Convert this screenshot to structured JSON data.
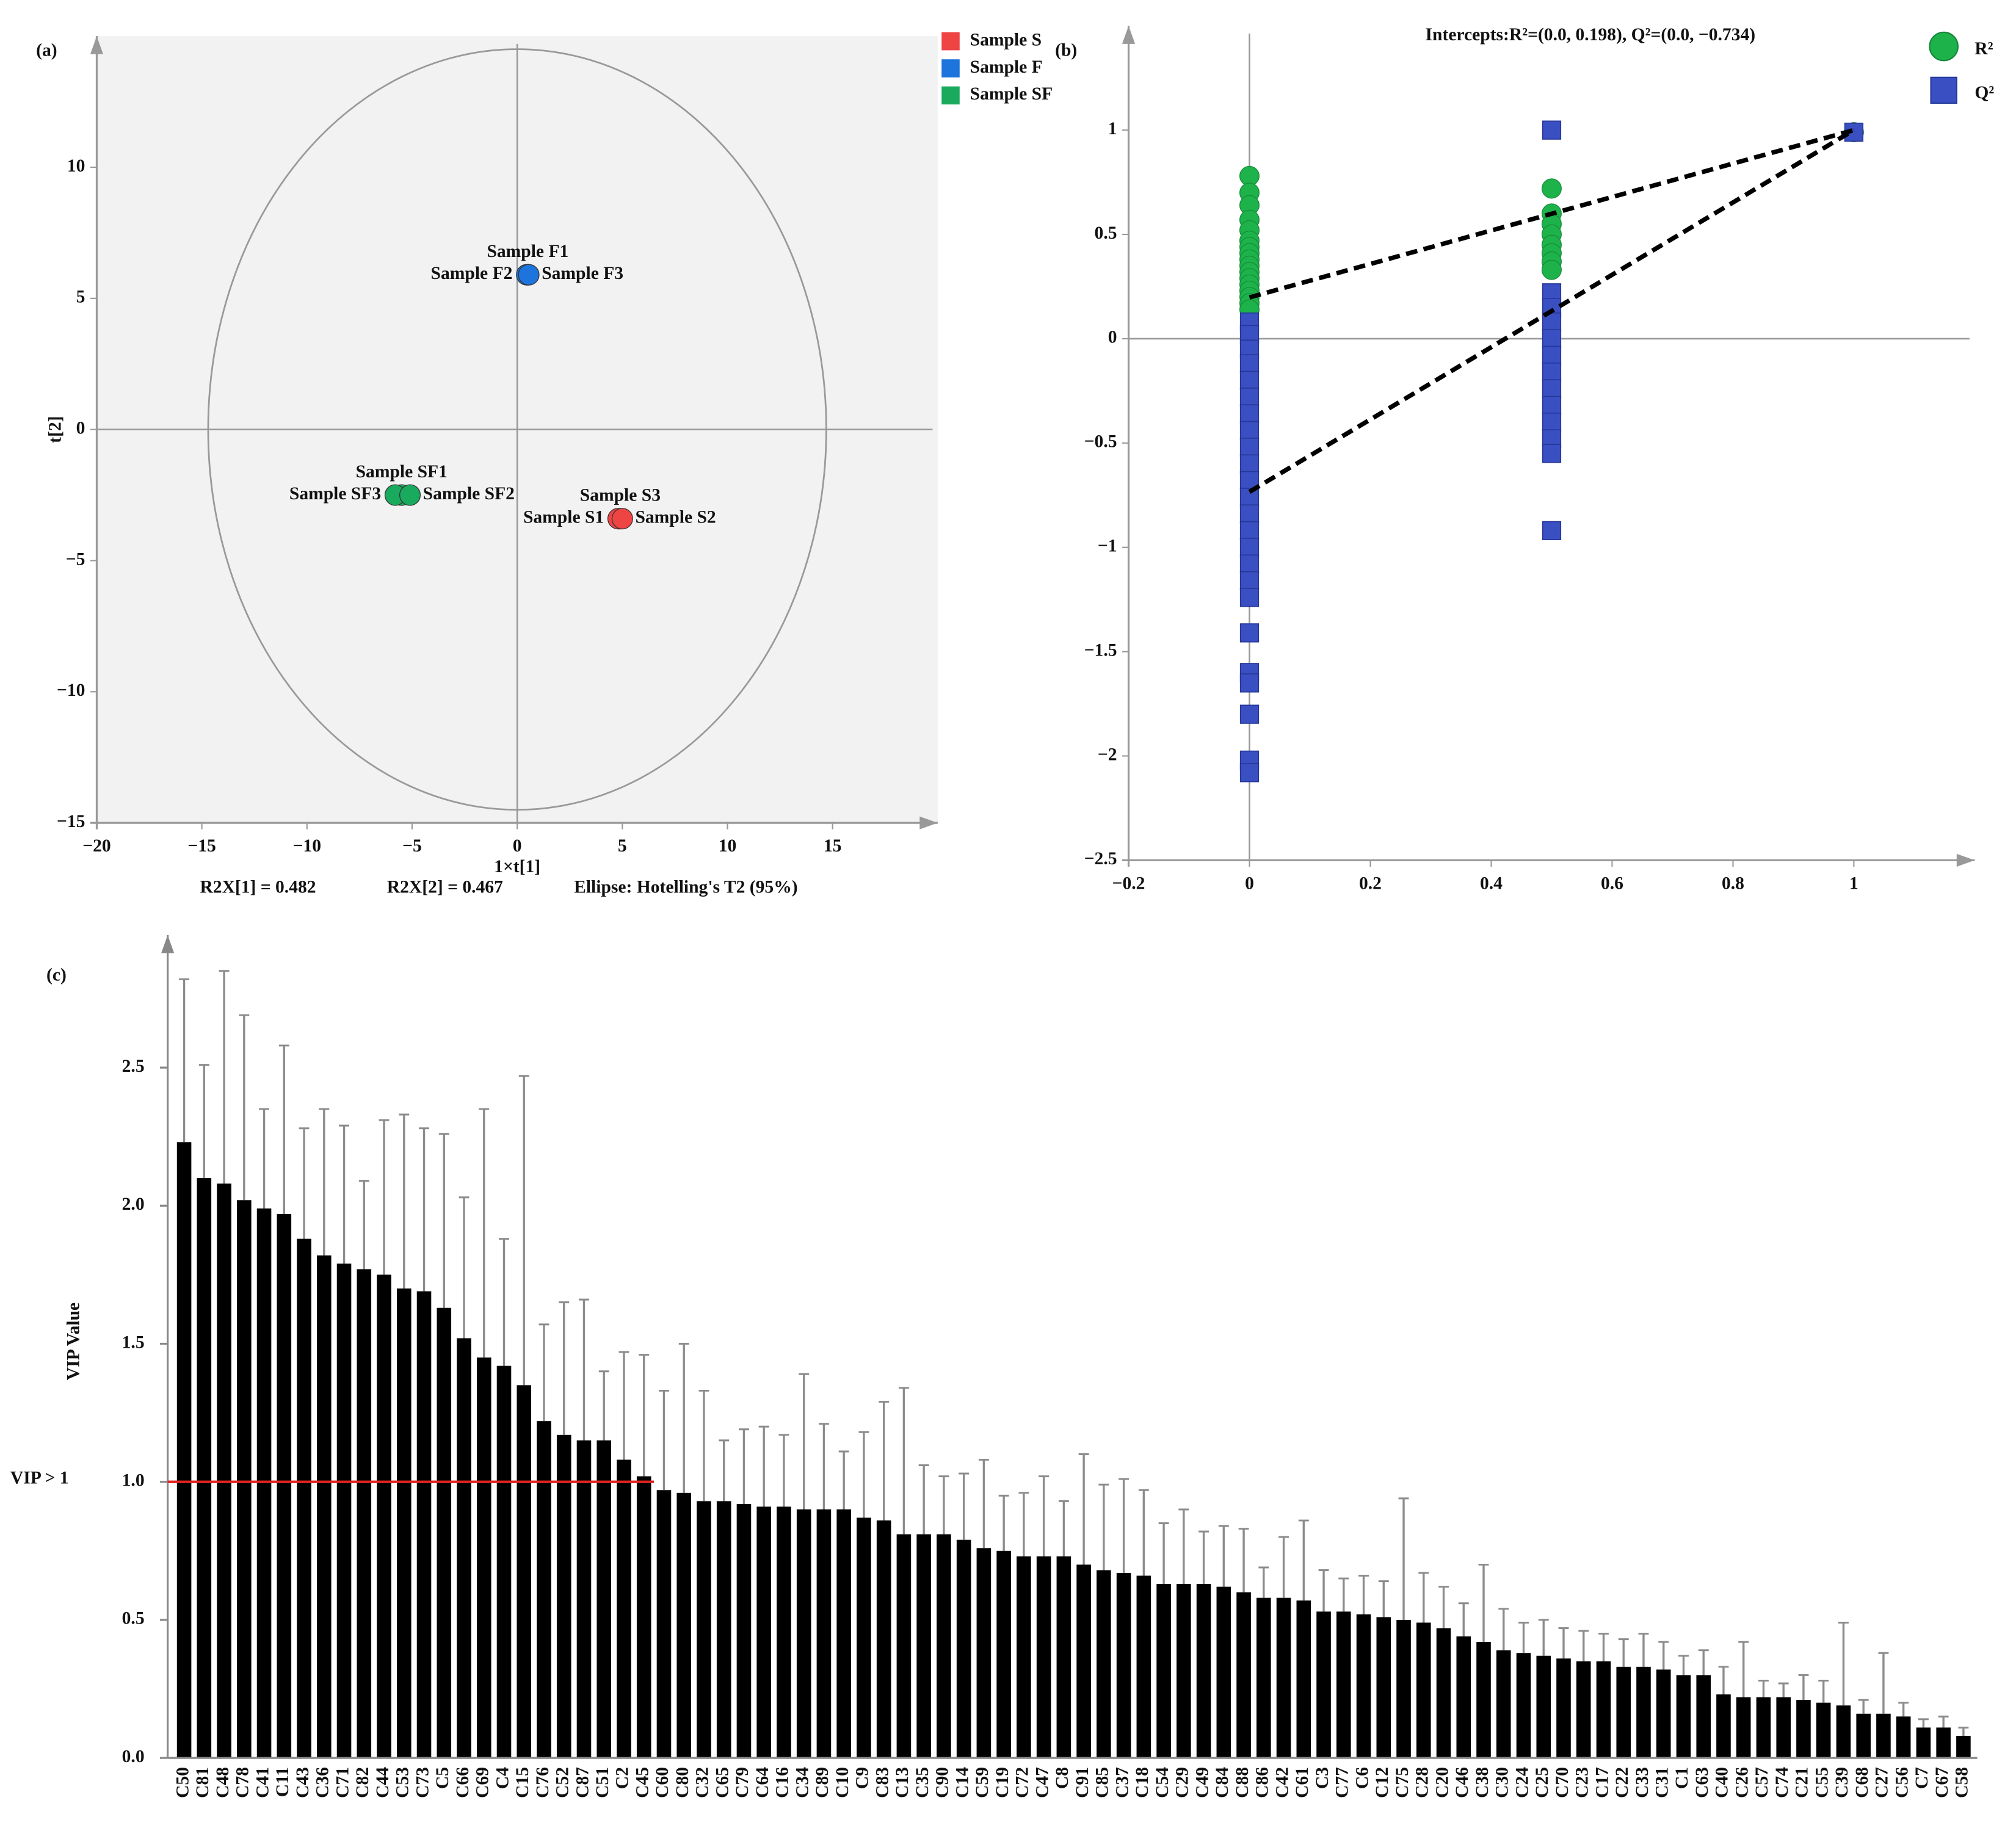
{
  "chart_data": [
    {
      "type": "scatter",
      "panel": "(a)",
      "x_label": "1×t[1]",
      "y_label": "t[2]",
      "footnotes": [
        "R2X[1] = 0.482",
        "R2X[2] = 0.467",
        "Ellipse: Hotelling's T2 (95%)"
      ],
      "xlim": [
        -20,
        20
      ],
      "ylim": [
        -15,
        15
      ],
      "xticks": [
        {
          "value": -20,
          "label": "−20"
        },
        {
          "value": -15,
          "label": "−15"
        },
        {
          "value": -10,
          "label": "−10"
        },
        {
          "value": -5,
          "label": "−5"
        },
        0,
        5,
        10,
        15
      ],
      "yticks": [
        {
          "value": -15,
          "label": "−15"
        },
        {
          "value": -10,
          "label": "−10"
        },
        {
          "value": -5,
          "label": "−5"
        },
        0,
        5,
        10
      ],
      "ellipse": {
        "rx": 14.7,
        "ry": 14.5
      },
      "series": [
        {
          "name": "Sample S",
          "color": "#ef4444",
          "label_color": "#c62828",
          "x": [
            4.9,
            4.8,
            5.0
          ],
          "values": [
            -3.4,
            -3.4,
            -3.4
          ],
          "labels": [
            "Sample S3",
            "Sample S1",
            "Sample S2"
          ]
        },
        {
          "name": "Sample F",
          "color": "#1c74dc",
          "label_color": "#1f5ea8",
          "x": [
            0.5,
            0.45,
            0.55
          ],
          "values": [
            5.9,
            5.9,
            5.9
          ],
          "labels": [
            "Sample F1",
            "Sample F2",
            "Sample F3"
          ]
        },
        {
          "name": "Sample SF",
          "color": "#19aa5e",
          "label_color": "#1b8a48",
          "x": [
            -5.5,
            -5.8,
            -5.1
          ],
          "values": [
            -2.5,
            -2.5,
            -2.5
          ],
          "labels": [
            "Sample SF1",
            "Sample SF3",
            "Sample SF2"
          ]
        }
      ]
    },
    {
      "type": "scatter",
      "panel": "(b)",
      "title": "Intercepts:R²=(0.0, 0.198), Q²=(0.0, −0.734)",
      "xlim": [
        -0.2,
        1.2
      ],
      "ylim": [
        -2.5,
        1.5
      ],
      "xticks": [
        {
          "value": -0.2,
          "label": "−0.2"
        },
        0,
        0.2,
        0.4,
        0.6,
        0.8,
        1
      ],
      "yticks": [
        {
          "value": -2.5,
          "label": "−2.5"
        },
        {
          "value": -2,
          "label": "−2"
        },
        {
          "value": -1.5,
          "label": "−1.5"
        },
        {
          "value": -1,
          "label": "−1"
        },
        {
          "value": -0.5,
          "label": "−0.5"
        },
        0,
        0.5,
        1
      ],
      "series": [
        {
          "name": "R²",
          "color": "#1db34a",
          "marker": "circle",
          "x": [
            0,
            0,
            0,
            0,
            0,
            0,
            0,
            0,
            0,
            0,
            0,
            0,
            0,
            0,
            0,
            0,
            0,
            0.5,
            0.5,
            0.5,
            0.5,
            0.5,
            0.5,
            0.5,
            0.5,
            1
          ],
          "values": [
            0.78,
            0.7,
            0.64,
            0.57,
            0.52,
            0.47,
            0.44,
            0.41,
            0.38,
            0.35,
            0.32,
            0.29,
            0.26,
            0.23,
            0.2,
            0.17,
            0.14,
            0.72,
            0.6,
            0.55,
            0.5,
            0.45,
            0.41,
            0.37,
            0.33,
            0.99
          ]
        },
        {
          "name": "Q²",
          "color": "#3a50c2",
          "marker": "square",
          "x": [
            0,
            0,
            0,
            0,
            0,
            0,
            0,
            0,
            0,
            0,
            0,
            0,
            0,
            0,
            0,
            0,
            0,
            0,
            0,
            0,
            0,
            0,
            0,
            0,
            0.5,
            0.5,
            0.5,
            0.5,
            0.5,
            0.5,
            0.5,
            0.5,
            0.5,
            0.5,
            0.5,
            0.5,
            0.5,
            1
          ],
          "values": [
            0.08,
            0.02,
            -0.05,
            -0.12,
            -0.2,
            -0.28,
            -0.36,
            -0.44,
            -0.52,
            -0.6,
            -0.68,
            -0.76,
            -0.84,
            -0.92,
            -1.0,
            -1.08,
            -1.16,
            -1.24,
            -1.41,
            -1.6,
            -1.65,
            -1.8,
            -2.02,
            -2.08,
            1.0,
            0.22,
            0.15,
            0.08,
            0.0,
            -0.08,
            -0.16,
            -0.24,
            -0.32,
            -0.4,
            -0.48,
            -0.55,
            -0.92,
            0.99
          ]
        }
      ],
      "lines": [
        {
          "x": [
            0,
            1
          ],
          "values": [
            0.198,
            1
          ]
        },
        {
          "x": [
            0,
            1
          ],
          "values": [
            -0.734,
            1
          ]
        }
      ]
    },
    {
      "type": "bar",
      "panel": "(c)",
      "y_label": "VIP Value",
      "categories": [
        "C50",
        "C81",
        "C48",
        "C78",
        "C41",
        "C11",
        "C43",
        "C36",
        "C71",
        "C82",
        "C44",
        "C53",
        "C73",
        "C5",
        "C66",
        "C69",
        "C4",
        "C15",
        "C76",
        "C52",
        "C87",
        "C51",
        "C2",
        "C45",
        "C60",
        "C80",
        "C32",
        "C65",
        "C79",
        "C64",
        "C16",
        "C34",
        "C89",
        "C10",
        "C9",
        "C83",
        "C13",
        "C35",
        "C90",
        "C14",
        "C59",
        "C19",
        "C72",
        "C47",
        "C8",
        "C91",
        "C85",
        "C37",
        "C18",
        "C54",
        "C29",
        "C49",
        "C84",
        "C88",
        "C86",
        "C42",
        "C61",
        "C3",
        "C77",
        "C6",
        "C12",
        "C75",
        "C28",
        "C20",
        "C46",
        "C38",
        "C30",
        "C24",
        "C25",
        "C70",
        "C23",
        "C17",
        "C22",
        "C33",
        "C31",
        "C1",
        "C63",
        "C40",
        "C26",
        "C57",
        "C74",
        "C21",
        "C55",
        "C39",
        "C68",
        "C27",
        "C56",
        "C7",
        "C67",
        "C58"
      ],
      "values": [
        2.23,
        2.1,
        2.08,
        2.02,
        1.99,
        1.97,
        1.88,
        1.82,
        1.79,
        1.77,
        1.75,
        1.7,
        1.69,
        1.63,
        1.52,
        1.45,
        1.42,
        1.35,
        1.22,
        1.17,
        1.15,
        1.15,
        1.08,
        1.02,
        0.97,
        0.96,
        0.93,
        0.93,
        0.92,
        0.91,
        0.91,
        0.9,
        0.9,
        0.9,
        0.87,
        0.86,
        0.81,
        0.81,
        0.81,
        0.79,
        0.76,
        0.75,
        0.73,
        0.73,
        0.73,
        0.7,
        0.68,
        0.67,
        0.66,
        0.63,
        0.63,
        0.63,
        0.62,
        0.6,
        0.58,
        0.58,
        0.57,
        0.53,
        0.53,
        0.52,
        0.51,
        0.5,
        0.49,
        0.47,
        0.44,
        0.42,
        0.39,
        0.38,
        0.37,
        0.36,
        0.35,
        0.35,
        0.33,
        0.33,
        0.32,
        0.3,
        0.3,
        0.23,
        0.22,
        0.22,
        0.22,
        0.21,
        0.2,
        0.19,
        0.16,
        0.16,
        0.15,
        0.11,
        0.11,
        0.08
      ],
      "errors": [
        0.59,
        0.41,
        0.77,
        0.67,
        0.36,
        0.61,
        0.4,
        0.53,
        0.5,
        0.32,
        0.56,
        0.63,
        0.59,
        0.63,
        0.51,
        0.9,
        0.46,
        1.12,
        0.35,
        0.48,
        0.51,
        0.25,
        0.39,
        0.44,
        0.36,
        0.54,
        0.4,
        0.22,
        0.27,
        0.29,
        0.26,
        0.49,
        0.31,
        0.21,
        0.31,
        0.43,
        0.53,
        0.25,
        0.21,
        0.24,
        0.32,
        0.2,
        0.23,
        0.29,
        0.2,
        0.4,
        0.31,
        0.34,
        0.31,
        0.22,
        0.27,
        0.19,
        0.22,
        0.23,
        0.11,
        0.22,
        0.29,
        0.15,
        0.12,
        0.14,
        0.13,
        0.44,
        0.18,
        0.15,
        0.12,
        0.28,
        0.15,
        0.11,
        0.13,
        0.11,
        0.11,
        0.1,
        0.1,
        0.12,
        0.1,
        0.07,
        0.09,
        0.1,
        0.2,
        0.06,
        0.05,
        0.09,
        0.08,
        0.3,
        0.05,
        0.22,
        0.05,
        0.03,
        0.04,
        0.03
      ],
      "color": "#000000",
      "error_color": "#8c8c8c",
      "ylim": [
        0,
        2.98
      ],
      "yticks": [
        {
          "value": 0,
          "label": "0.0"
        },
        0.5,
        {
          "value": 1,
          "label": "1.0"
        },
        1.5,
        {
          "value": 2,
          "label": "2.0"
        },
        2.5
      ],
      "threshold": {
        "value": 1,
        "label": "VIP > 1",
        "color": "#e0231f"
      }
    }
  ]
}
